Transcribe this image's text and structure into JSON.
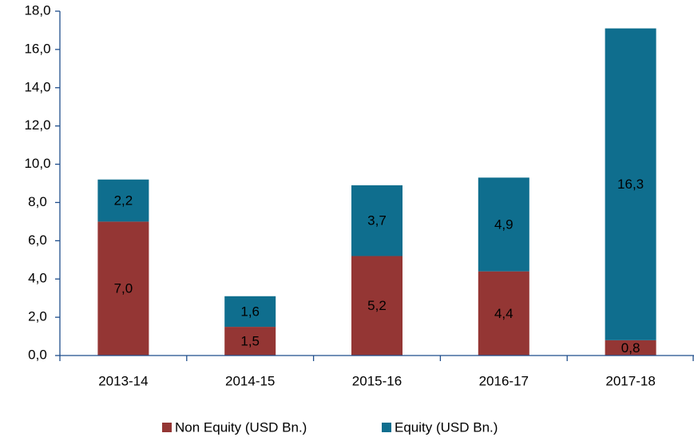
{
  "chart_data": {
    "type": "stacked_bar",
    "categories": [
      "2013-14",
      "2014-15",
      "2015-16",
      "2016-17",
      "2017-18"
    ],
    "series": [
      {
        "name": "Non Equity (USD Bn.)",
        "color": "#943634",
        "values": [
          7.0,
          1.5,
          5.2,
          4.4,
          0.8
        ],
        "value_labels": [
          "7,0",
          "1,5",
          "5,2",
          "4,4",
          "0,8"
        ]
      },
      {
        "name": "Equity (USD Bn.)",
        "color": "#0f6e8e",
        "values": [
          2.2,
          1.6,
          3.7,
          4.9,
          16.3
        ],
        "value_labels": [
          "2,2",
          "1,6",
          "3,7",
          "4,9",
          "16,3"
        ]
      }
    ],
    "ylim": [
      0,
      18
    ],
    "yticks": [
      {
        "value": 0,
        "label": "0,0"
      },
      {
        "value": 2,
        "label": "2,0"
      },
      {
        "value": 4,
        "label": "4,0"
      },
      {
        "value": 6,
        "label": "6,0"
      },
      {
        "value": 8,
        "label": "8,0"
      },
      {
        "value": 10,
        "label": "10,0"
      },
      {
        "value": 12,
        "label": "12,0"
      },
      {
        "value": 14,
        "label": "14,0"
      },
      {
        "value": 16,
        "label": "16,0"
      },
      {
        "value": 18,
        "label": "18,0"
      }
    ],
    "grid": false,
    "legend": "bottom"
  }
}
